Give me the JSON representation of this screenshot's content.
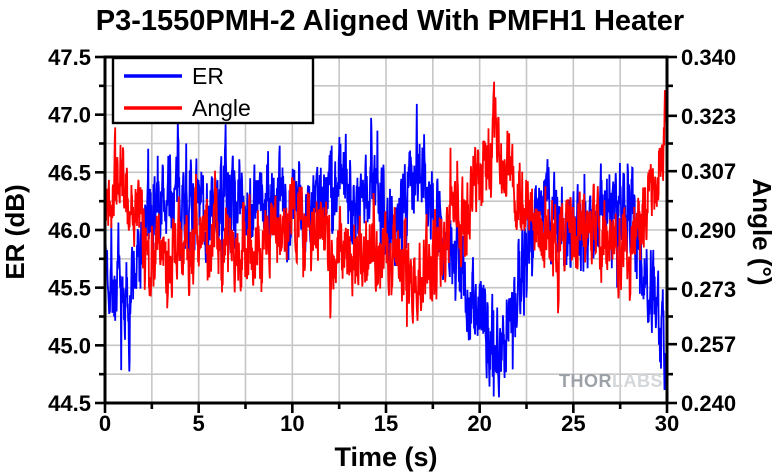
{
  "watermark": {
    "part1": "THOR",
    "part2": "LABS"
  },
  "chart_data": {
    "type": "line",
    "title": "P3-1550PMH-2 Aligned With PMFH1 Heater",
    "xlabel": "Time (s)",
    "ylabel_left": "ER (dB)",
    "ylabel_right": "Angle (°)",
    "xlim": [
      0,
      30
    ],
    "ylim_left": [
      44.5,
      47.5
    ],
    "ylim_right": [
      0.24,
      0.34
    ],
    "xticks": [
      0,
      5,
      10,
      15,
      20,
      25,
      30
    ],
    "xtick_labels": [
      "0",
      "5",
      "10",
      "15",
      "20",
      "25",
      "30"
    ],
    "xtick_minor_step": 2.5,
    "yticks_left": [
      44.5,
      45.0,
      45.5,
      46.0,
      46.5,
      47.0,
      47.5
    ],
    "ytick_left_labels": [
      "44.5",
      "45.0",
      "45.5",
      "46.0",
      "46.5",
      "47.0",
      "47.5"
    ],
    "yticks_right": [
      0.24,
      0.257,
      0.273,
      0.29,
      0.307,
      0.323,
      0.34
    ],
    "ytick_right_labels": [
      "0.240",
      "0.257",
      "0.273",
      "0.290",
      "0.307",
      "0.323",
      "0.340"
    ],
    "grid": {
      "x_step": 2.5,
      "y_step": 0.25,
      "color": "#c6c6c6",
      "on": true
    },
    "legend": {
      "position": "top-left",
      "entries": [
        {
          "label": "ER",
          "color": "#0000ff"
        },
        {
          "label": "Angle",
          "color": "#ff0000"
        }
      ]
    },
    "n_points": 1600,
    "series": [
      {
        "name": "ER",
        "axis": "left",
        "color": "#0000ff",
        "noise_amp": 0.3,
        "seed": 7,
        "keypoints": [
          [
            0,
            45.8
          ],
          [
            0.5,
            45.5
          ],
          [
            1.1,
            45.35
          ],
          [
            1.8,
            45.75
          ],
          [
            2.4,
            46.1
          ],
          [
            3.2,
            46.25
          ],
          [
            4,
            46.3
          ],
          [
            4.8,
            46.2
          ],
          [
            5.6,
            46.15
          ],
          [
            6.4,
            46.3
          ],
          [
            7.2,
            46.3
          ],
          [
            8,
            46.2
          ],
          [
            8.8,
            46.25
          ],
          [
            9.6,
            46.2
          ],
          [
            10.4,
            46.2
          ],
          [
            11.2,
            46.3
          ],
          [
            12,
            46.35
          ],
          [
            12.7,
            46.5
          ],
          [
            13.4,
            46.25
          ],
          [
            14.2,
            46.35
          ],
          [
            15,
            46.15
          ],
          [
            15.8,
            46.1
          ],
          [
            16.6,
            46.55
          ],
          [
            17.1,
            46.5
          ],
          [
            17.8,
            46.1
          ],
          [
            18.5,
            45.8
          ],
          [
            19.3,
            45.5
          ],
          [
            20.1,
            45.2
          ],
          [
            20.9,
            44.97
          ],
          [
            21.5,
            45.15
          ],
          [
            22.2,
            45.7
          ],
          [
            22.9,
            46.15
          ],
          [
            23.6,
            46.35
          ],
          [
            24.3,
            46.05
          ],
          [
            25.1,
            45.9
          ],
          [
            25.9,
            46.0
          ],
          [
            26.6,
            46.2
          ],
          [
            27.4,
            46.3
          ],
          [
            28.1,
            46.1
          ],
          [
            28.8,
            45.75
          ],
          [
            29.4,
            45.35
          ],
          [
            30,
            44.95
          ]
        ]
      },
      {
        "name": "Angle",
        "axis": "right",
        "color": "#ff0000",
        "noise_amp": 0.0091,
        "seed": 42,
        "keypoints": [
          [
            0,
            0.297
          ],
          [
            0.6,
            0.306
          ],
          [
            1.1,
            0.302
          ],
          [
            1.7,
            0.294
          ],
          [
            2.4,
            0.286
          ],
          [
            3.2,
            0.282
          ],
          [
            4,
            0.284
          ],
          [
            4.8,
            0.286
          ],
          [
            5.6,
            0.283
          ],
          [
            6.4,
            0.285
          ],
          [
            7.2,
            0.287
          ],
          [
            8,
            0.285
          ],
          [
            8.8,
            0.287
          ],
          [
            9.6,
            0.29
          ],
          [
            10.3,
            0.295
          ],
          [
            11,
            0.293
          ],
          [
            11.8,
            0.288
          ],
          [
            12.6,
            0.283
          ],
          [
            13.4,
            0.282
          ],
          [
            14.2,
            0.286
          ],
          [
            15,
            0.284
          ],
          [
            15.8,
            0.278
          ],
          [
            16.6,
            0.276
          ],
          [
            17.4,
            0.281
          ],
          [
            18.2,
            0.288
          ],
          [
            19,
            0.294
          ],
          [
            19.8,
            0.301
          ],
          [
            20.6,
            0.315
          ],
          [
            21,
            0.317
          ],
          [
            21.6,
            0.308
          ],
          [
            22.3,
            0.298
          ],
          [
            23,
            0.29
          ],
          [
            23.8,
            0.287
          ],
          [
            24.6,
            0.29
          ],
          [
            25.4,
            0.287
          ],
          [
            26.1,
            0.289
          ],
          [
            26.8,
            0.285
          ],
          [
            27.6,
            0.284
          ],
          [
            28.3,
            0.29
          ],
          [
            29,
            0.298
          ],
          [
            29.5,
            0.307
          ],
          [
            30,
            0.323
          ]
        ]
      }
    ]
  }
}
